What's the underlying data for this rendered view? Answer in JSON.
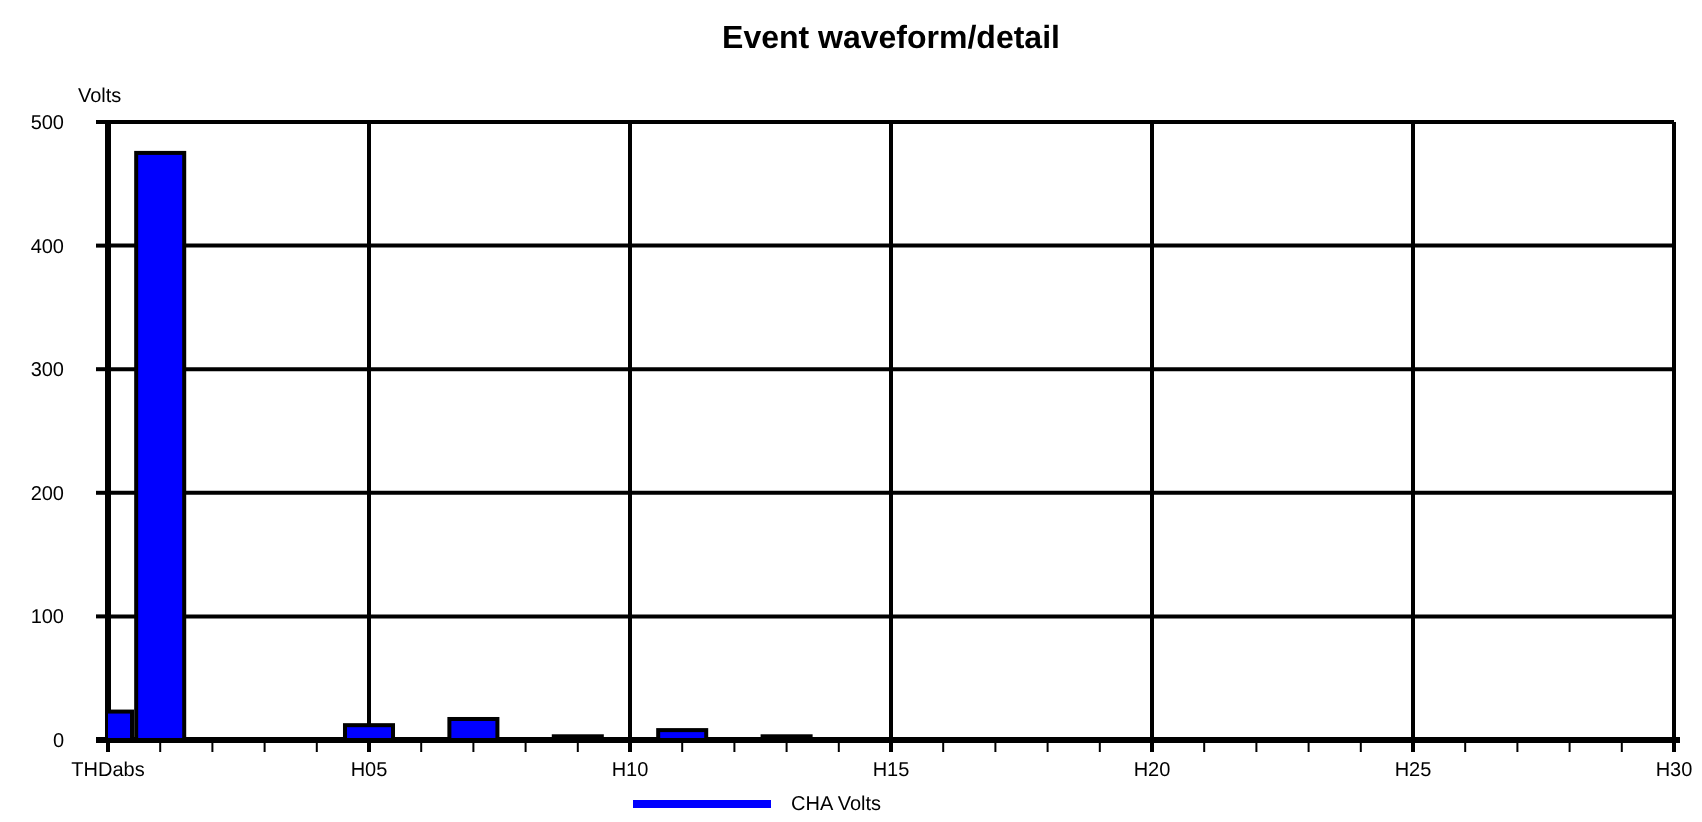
{
  "chart_data": {
    "type": "bar",
    "title": "Event waveform/detail",
    "ylabel": "Volts",
    "categories": [
      "THDabs",
      null,
      null,
      null,
      null,
      "H05",
      null,
      null,
      null,
      null,
      "H10",
      null,
      null,
      null,
      null,
      "H15",
      null,
      null,
      null,
      null,
      "H20",
      null,
      null,
      null,
      null,
      "H25",
      null,
      null,
      null,
      null,
      "H30"
    ],
    "series": [
      {
        "name": "CHA Volts",
        "color": "#0000ff",
        "values": [
          23,
          475,
          0,
          0,
          0,
          12,
          0,
          17,
          0,
          3,
          0,
          8,
          0,
          3,
          0,
          0,
          0,
          0,
          0,
          0,
          0,
          0,
          0,
          0,
          0,
          0,
          0,
          0,
          0,
          0,
          0
        ]
      }
    ],
    "ylim": [
      0,
      500
    ],
    "yticks": [
      0,
      100,
      200,
      300,
      400,
      500
    ],
    "grid": true,
    "legend": "bottom"
  }
}
